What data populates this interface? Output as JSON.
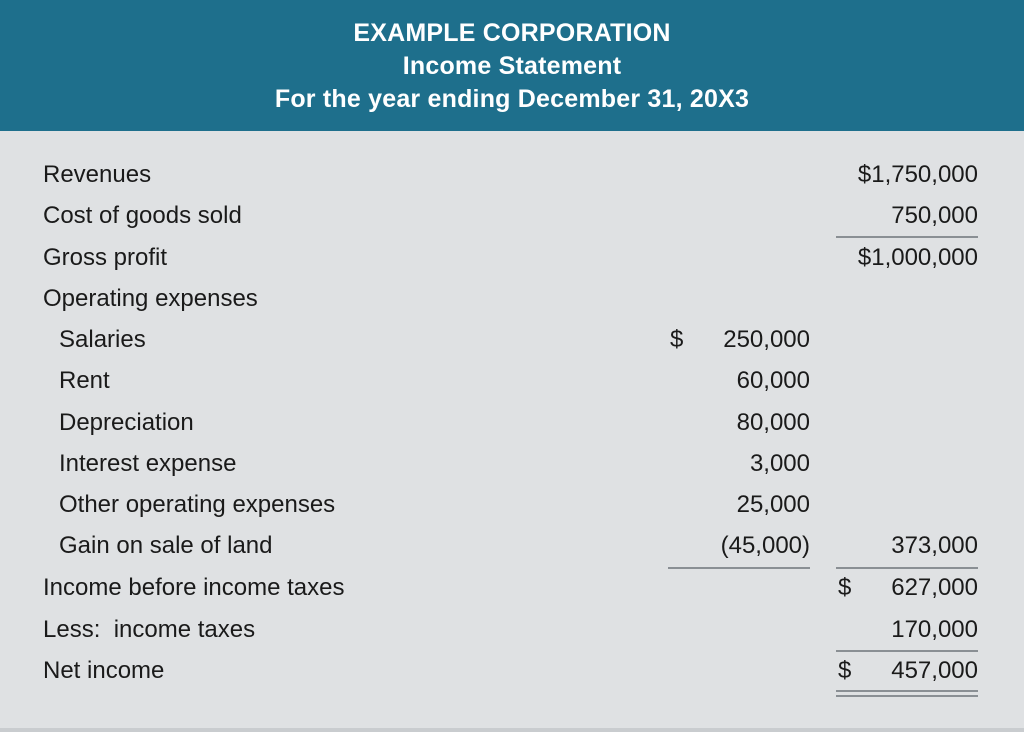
{
  "header": {
    "company": "EXAMPLE CORPORATION",
    "statement": "Income Statement",
    "period": "For the year ending December 31, 20X3"
  },
  "lines": {
    "revenues": {
      "label": "Revenues",
      "total": "$1,750,000"
    },
    "cogs": {
      "label": "Cost of goods sold",
      "total": "750,000"
    },
    "gross_profit": {
      "label": "Gross profit",
      "total": "$1,000,000"
    },
    "opex_heading": {
      "label": "Operating expenses"
    },
    "salaries": {
      "label": "Salaries",
      "symbol": "$",
      "amount": "250,000"
    },
    "rent": {
      "label": "Rent",
      "amount": "60,000"
    },
    "depreciation": {
      "label": "Depreciation",
      "amount": "80,000"
    },
    "interest": {
      "label": "Interest expense",
      "amount": "3,000"
    },
    "other_opex": {
      "label": "Other operating expenses",
      "amount": "25,000"
    },
    "gain_land": {
      "label": "Gain on sale of land",
      "amount": "(45,000)",
      "total": "373,000"
    },
    "pretax": {
      "label": "Income before income taxes",
      "symbol": "$",
      "total": "627,000"
    },
    "taxes": {
      "label": "Less:  income taxes",
      "total": "170,000"
    },
    "net_income": {
      "label": "Net income",
      "symbol": "$",
      "total": "457,000"
    }
  }
}
